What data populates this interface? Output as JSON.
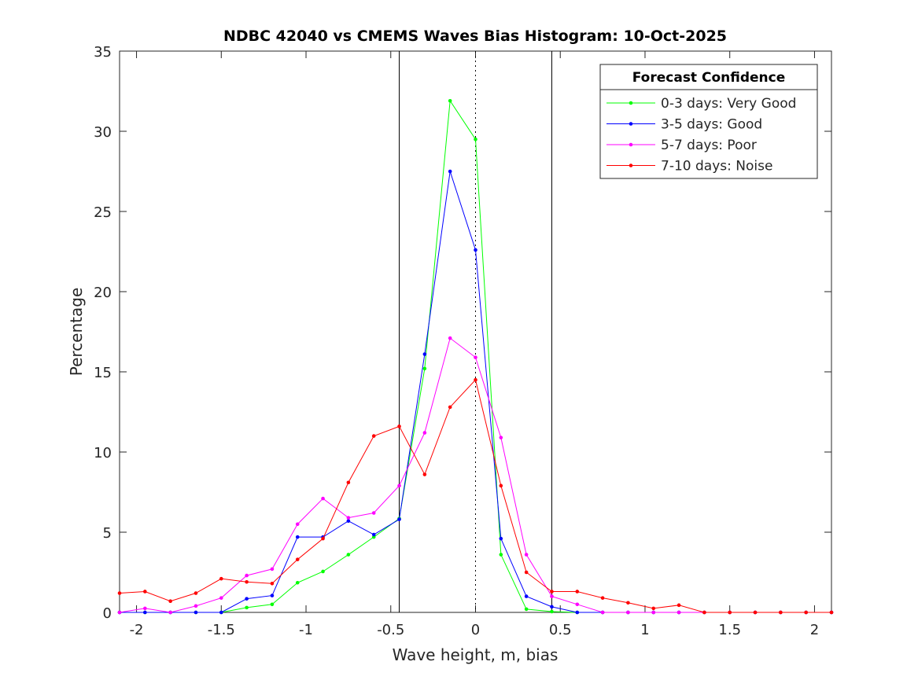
{
  "chart_data": {
    "type": "line",
    "title": "NDBC 42040 vs CMEMS Waves Bias Histogram: 10-Oct-2025",
    "xlabel": "Wave height, m, bias",
    "ylabel": "Percentage",
    "xlim": [
      -2.1,
      2.1
    ],
    "ylim": [
      0,
      35
    ],
    "xticks": [
      -2,
      -1.5,
      -1,
      -0.5,
      0,
      0.5,
      1,
      1.5,
      2
    ],
    "xtick_labels": [
      "-2",
      "-1.5",
      "-1",
      "-0.5",
      "0",
      "0.5",
      "1",
      "1.5",
      "2"
    ],
    "yticks": [
      0,
      5,
      10,
      15,
      20,
      25,
      30,
      35
    ],
    "ytick_labels": [
      "0",
      "5",
      "10",
      "15",
      "20",
      "25",
      "30",
      "35"
    ],
    "grid": false,
    "vertical_lines": [
      {
        "x": -0.45,
        "style": "solid"
      },
      {
        "x": 0.45,
        "style": "solid"
      },
      {
        "x": 0,
        "style": "dotted"
      }
    ],
    "legend": {
      "title": "Forecast Confidence",
      "placement": "top-right"
    },
    "x": [
      -2.1,
      -1.95,
      -1.8,
      -1.65,
      -1.5,
      -1.35,
      -1.2,
      -1.05,
      -0.9,
      -0.75,
      -0.6,
      -0.45,
      -0.3,
      -0.15,
      0,
      0.15,
      0.3,
      0.45,
      0.6,
      0.75,
      0.9,
      1.05,
      1.2,
      1.35,
      1.5,
      1.65,
      1.8,
      1.95,
      2.1
    ],
    "series": [
      {
        "name": "0-3 days: Very Good",
        "color": "#00ff00",
        "values": [
          0,
          0,
          0,
          0,
          0,
          0.3,
          0.5,
          1.85,
          2.55,
          3.6,
          4.7,
          5.85,
          15.2,
          31.9,
          29.5,
          3.6,
          0.2,
          0.05,
          0,
          0,
          0,
          0,
          0,
          0,
          0,
          0,
          0,
          0,
          0
        ]
      },
      {
        "name": "3-5 days: Good",
        "color": "#0000ff",
        "values": [
          0,
          0,
          0,
          0,
          0,
          0.85,
          1.05,
          4.7,
          4.7,
          5.7,
          4.85,
          5.8,
          16.1,
          27.5,
          22.6,
          4.6,
          1.0,
          0.35,
          0,
          0,
          0,
          0,
          0,
          0,
          0,
          0,
          0,
          0,
          0
        ]
      },
      {
        "name": "5-7 days: Poor",
        "color": "#ff00ff",
        "values": [
          0,
          0.25,
          0,
          0.4,
          0.9,
          2.3,
          2.7,
          5.5,
          7.1,
          5.9,
          6.2,
          7.9,
          11.2,
          17.1,
          15.9,
          10.9,
          3.6,
          1.0,
          0.5,
          0,
          0,
          0,
          0,
          0,
          0,
          0,
          0,
          0,
          0
        ]
      },
      {
        "name": "7-10 days: Noise",
        "color": "#ff0000",
        "values": [
          1.2,
          1.3,
          0.7,
          1.2,
          2.1,
          1.9,
          1.8,
          3.3,
          4.6,
          8.1,
          11.0,
          11.6,
          8.6,
          12.8,
          14.5,
          7.9,
          2.5,
          1.3,
          1.3,
          0.9,
          0.6,
          0.25,
          0.45,
          0,
          0,
          0,
          0,
          0,
          0
        ]
      }
    ]
  }
}
